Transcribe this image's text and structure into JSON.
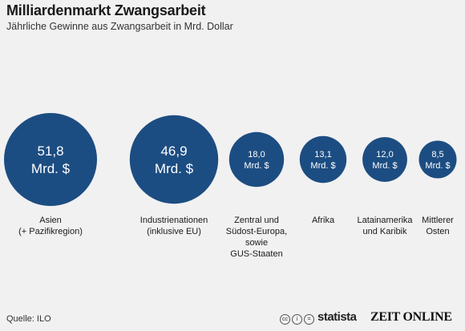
{
  "header": {
    "title": "Milliardenmarkt Zwangsarbeit",
    "subtitle": "Jährliche Gewinne aus Zwangsarbeit in Mrd. Dollar"
  },
  "chart_data": {
    "type": "bubble",
    "title": "Milliardenmarkt Zwangsarbeit",
    "subtitle": "Jährliche Gewinne aus Zwangsarbeit in Mrd. Dollar",
    "unit": "Mrd. $",
    "color": "#1c4d82",
    "categories": [
      {
        "label": "Asien\n(+ Pazifikregion)",
        "value": 51.8,
        "value_label": "51,8"
      },
      {
        "label": "Industrienationen\n(inklusive EU)",
        "value": 46.9,
        "value_label": "46,9"
      },
      {
        "label": "Zentral und\nSüdost-Europa,\nsowie\nGUS-Staaten",
        "value": 18.0,
        "value_label": "18,0"
      },
      {
        "label": "Afrika",
        "value": 13.1,
        "value_label": "13,1"
      },
      {
        "label": "Latainamerika\nund Karibik",
        "value": 12.0,
        "value_label": "12,0"
      },
      {
        "label": "Mittlerer\nOsten",
        "value": 8.5,
        "value_label": "8,5"
      }
    ]
  },
  "footer": {
    "source": "Quelle: ILO",
    "cc_icons": [
      "cc",
      "i",
      "="
    ],
    "brand_statista": "statista",
    "brand_zeit": "ZEIT ONLINE"
  }
}
